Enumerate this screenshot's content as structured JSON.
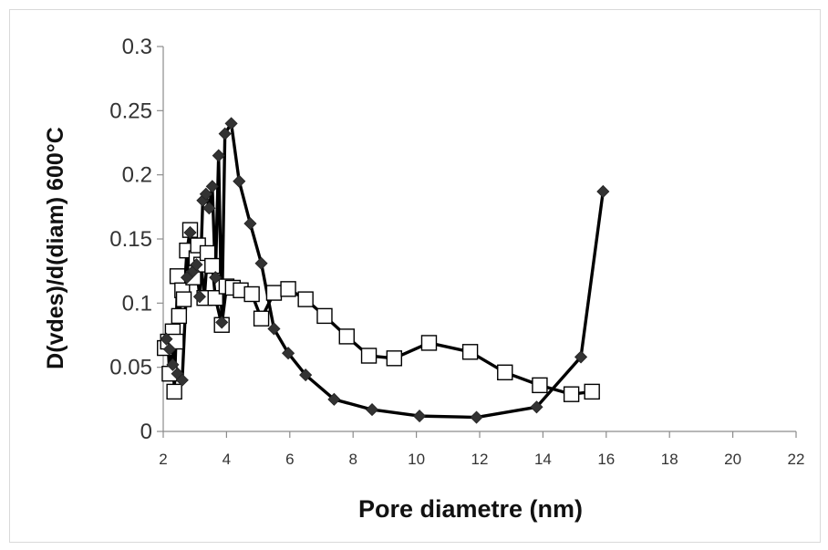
{
  "chart_data": {
    "type": "scatter",
    "title": "",
    "xlabel": "Pore diametre  (nm)",
    "ylabel": "D(vdes)/d(diam) 600°C",
    "xlim": [
      2,
      22
    ],
    "ylim": [
      0,
      0.3
    ],
    "x_ticks": [
      "2",
      "4",
      "6",
      "8",
      "10",
      "12",
      "14",
      "16",
      "18",
      "20",
      "22"
    ],
    "y_ticks": [
      "0",
      "0.05",
      "0.1",
      "0.15",
      "0.2",
      "0.25",
      "0.3"
    ],
    "grid": false,
    "legend": "none",
    "series": [
      {
        "marker": "filled-diamond",
        "color": "#000000",
        "points": [
          [
            2.1,
            0.072
          ],
          [
            2.2,
            0.064
          ],
          [
            2.3,
            0.052
          ],
          [
            2.45,
            0.045
          ],
          [
            2.6,
            0.04
          ],
          [
            2.75,
            0.12
          ],
          [
            2.85,
            0.155
          ],
          [
            2.95,
            0.125
          ],
          [
            3.05,
            0.13
          ],
          [
            3.15,
            0.105
          ],
          [
            3.25,
            0.18
          ],
          [
            3.35,
            0.185
          ],
          [
            3.45,
            0.174
          ],
          [
            3.55,
            0.191
          ],
          [
            3.65,
            0.12
          ],
          [
            3.75,
            0.215
          ],
          [
            3.85,
            0.085
          ],
          [
            3.95,
            0.232
          ],
          [
            4.15,
            0.24
          ],
          [
            4.4,
            0.195
          ],
          [
            4.75,
            0.162
          ],
          [
            5.1,
            0.131
          ],
          [
            5.5,
            0.08
          ],
          [
            5.95,
            0.061
          ],
          [
            6.5,
            0.044
          ],
          [
            7.4,
            0.025
          ],
          [
            8.6,
            0.017
          ],
          [
            10.1,
            0.012
          ],
          [
            11.9,
            0.011
          ],
          [
            13.8,
            0.019
          ],
          [
            15.2,
            0.058
          ],
          [
            15.9,
            0.187
          ]
        ]
      },
      {
        "marker": "open-square",
        "color": "#000000",
        "points": [
          [
            2.05,
            0.065
          ],
          [
            2.15,
            0.07
          ],
          [
            2.2,
            0.045
          ],
          [
            2.3,
            0.078
          ],
          [
            2.35,
            0.031
          ],
          [
            2.4,
            0.07
          ],
          [
            2.45,
            0.121
          ],
          [
            2.5,
            0.09
          ],
          [
            2.6,
            0.11
          ],
          [
            2.65,
            0.103
          ],
          [
            2.75,
            0.141
          ],
          [
            2.85,
            0.157
          ],
          [
            2.95,
            0.12
          ],
          [
            3.05,
            0.135
          ],
          [
            3.1,
            0.145
          ],
          [
            3.2,
            0.13
          ],
          [
            3.3,
            0.104
          ],
          [
            3.4,
            0.139
          ],
          [
            3.55,
            0.129
          ],
          [
            3.65,
            0.104
          ],
          [
            3.85,
            0.083
          ],
          [
            4.0,
            0.113
          ],
          [
            4.2,
            0.112
          ],
          [
            4.45,
            0.11
          ],
          [
            4.8,
            0.107
          ],
          [
            5.1,
            0.088
          ],
          [
            5.5,
            0.108
          ],
          [
            5.95,
            0.111
          ],
          [
            6.5,
            0.103
          ],
          [
            7.1,
            0.09
          ],
          [
            7.8,
            0.074
          ],
          [
            8.5,
            0.059
          ],
          [
            9.3,
            0.057
          ],
          [
            10.4,
            0.069
          ],
          [
            11.7,
            0.062
          ],
          [
            12.8,
            0.046
          ],
          [
            13.9,
            0.036
          ],
          [
            14.9,
            0.029
          ],
          [
            15.55,
            0.031
          ]
        ]
      }
    ]
  }
}
